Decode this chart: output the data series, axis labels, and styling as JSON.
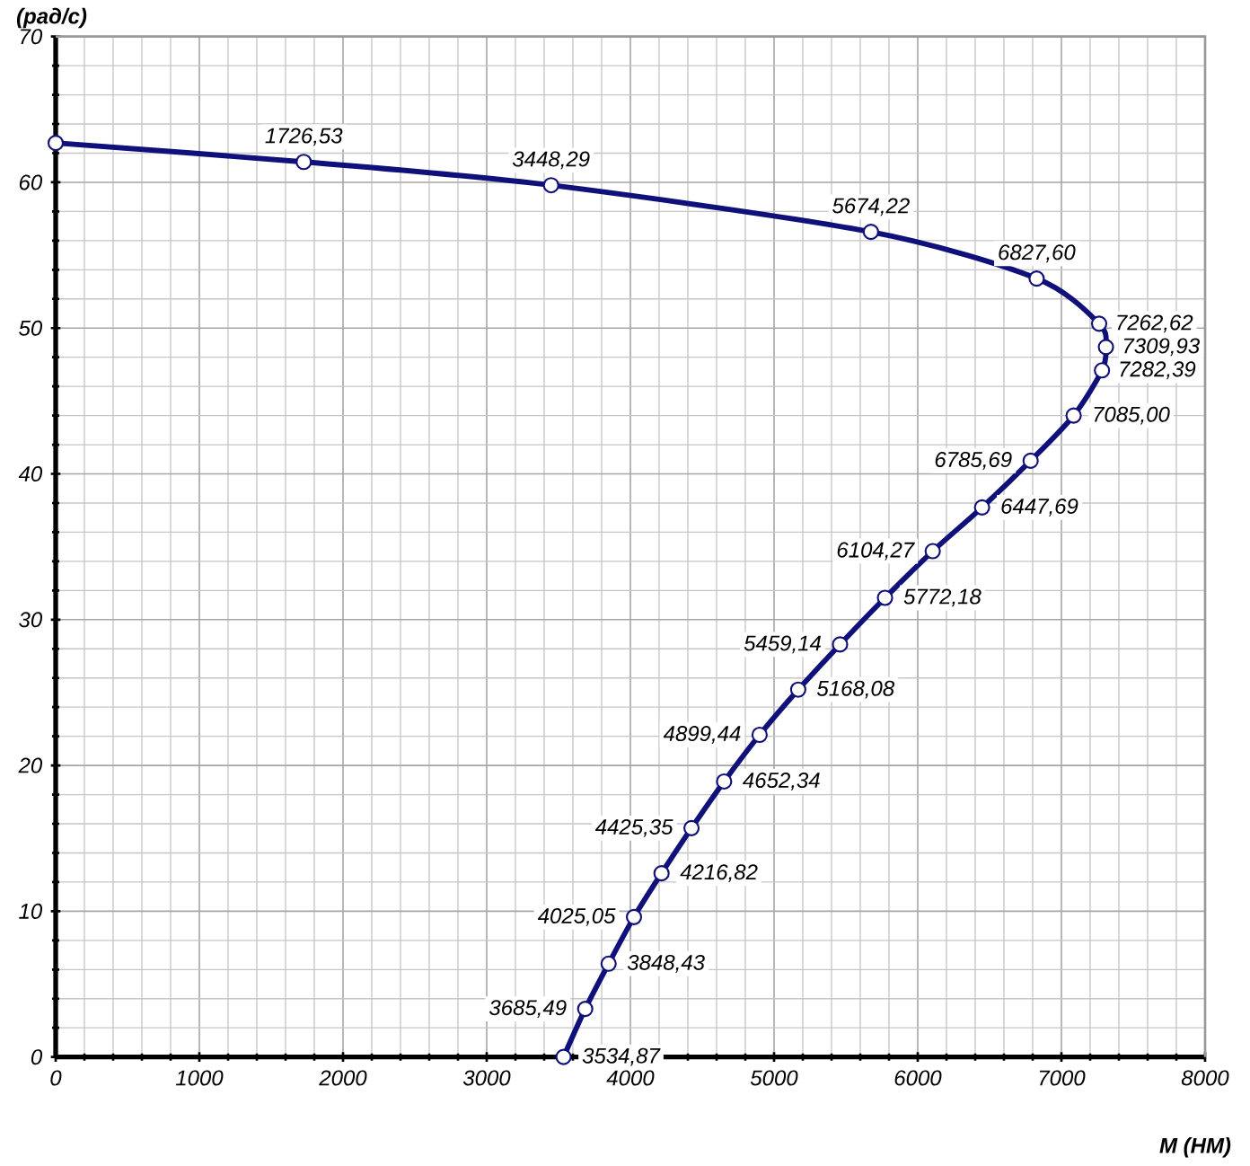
{
  "chart_data": {
    "type": "line",
    "xlabel": "M (НМ)",
    "ylabel": "(рад/с)",
    "x": [
      0,
      1726.53,
      3448.29,
      5674.22,
      6827.6,
      7262.62,
      7309.93,
      7282.39,
      7085.0,
      6785.69,
      6447.69,
      6104.27,
      5772.18,
      5459.14,
      5168.08,
      4899.44,
      4652.34,
      4425.35,
      4216.82,
      4025.05,
      3848.43,
      3685.49,
      3534.87
    ],
    "values": [
      62.7,
      61.4,
      59.8,
      56.6,
      53.4,
      50.3,
      48.7,
      47.1,
      44.0,
      40.9,
      37.7,
      34.7,
      31.5,
      28.3,
      25.2,
      22.1,
      18.9,
      15.7,
      12.6,
      9.6,
      6.4,
      3.3,
      0
    ],
    "annotations": [
      {
        "text": "1726,53",
        "x": 1726.53,
        "y": 61.4
      },
      {
        "text": "3448,29",
        "x": 3448.29,
        "y": 59.8
      },
      {
        "text": "5674,22",
        "x": 5674.22,
        "y": 56.6
      },
      {
        "text": "6827,60",
        "x": 6827.6,
        "y": 53.4
      },
      {
        "text": "7262,62",
        "x": 7262.62,
        "y": 50.3
      },
      {
        "text": "7309,93",
        "x": 7309.93,
        "y": 48.7
      },
      {
        "text": "7282,39",
        "x": 7282.39,
        "y": 47.1
      },
      {
        "text": "7085,00",
        "x": 7085.0,
        "y": 44.0
      },
      {
        "text": "6785,69",
        "x": 6785.69,
        "y": 40.9
      },
      {
        "text": "6447,69",
        "x": 6447.69,
        "y": 37.7
      },
      {
        "text": "6104,27",
        "x": 6104.27,
        "y": 34.7
      },
      {
        "text": "5772,18",
        "x": 5772.18,
        "y": 31.5
      },
      {
        "text": "5459,14",
        "x": 5459.14,
        "y": 28.3
      },
      {
        "text": "5168,08",
        "x": 5168.08,
        "y": 25.2
      },
      {
        "text": "4899,44",
        "x": 4899.44,
        "y": 22.1
      },
      {
        "text": "4652,34",
        "x": 4652.34,
        "y": 18.9
      },
      {
        "text": "4425,35",
        "x": 4425.35,
        "y": 15.7
      },
      {
        "text": "4216,82",
        "x": 4216.82,
        "y": 12.6
      },
      {
        "text": "4025,05",
        "x": 4025.05,
        "y": 9.6
      },
      {
        "text": "3848,43",
        "x": 3848.43,
        "y": 6.4
      },
      {
        "text": "3685,49",
        "x": 3685.49,
        "y": 3.3
      },
      {
        "text": "3534,87",
        "x": 3534.87,
        "y": 0
      }
    ],
    "color": "#10107a",
    "xlim": [
      0,
      8000
    ],
    "ylim": [
      0,
      70
    ],
    "xticks": [
      0,
      1000,
      2000,
      3000,
      4000,
      5000,
      6000,
      7000,
      8000
    ],
    "yticks": [
      0,
      10,
      20,
      30,
      40,
      50,
      60,
      70
    ],
    "grid": true,
    "marker": "circle",
    "line_style": "solid"
  }
}
